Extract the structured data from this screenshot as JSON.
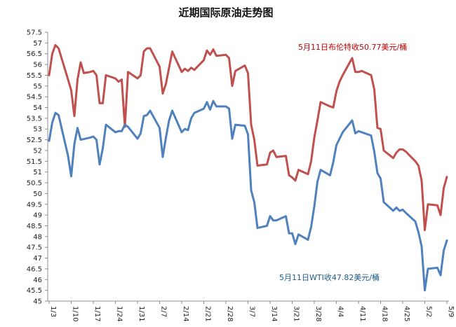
{
  "chart_data": {
    "type": "line",
    "title": "近期国际原油走势图",
    "xlabel": "",
    "ylabel": "",
    "ylim": [
      45,
      57.5
    ],
    "ystep": 0.5,
    "x_ticks": [
      "1/3",
      "1/10",
      "1/17",
      "1/24",
      "1/31",
      "2/7",
      "2/14",
      "2/21",
      "2/28",
      "3/7",
      "3/14",
      "3/21",
      "3/28",
      "4/4",
      "4/11",
      "4/18",
      "4/25",
      "5/2",
      "5/9"
    ],
    "grid": false,
    "legend": "none",
    "series": [
      {
        "color": "#c0504d",
        "values": [
          [
            0,
            55.5
          ],
          [
            1,
            56.5
          ],
          [
            2,
            56.9
          ],
          [
            3,
            56.75
          ],
          [
            6,
            55.3
          ],
          [
            7,
            54.8
          ],
          [
            8,
            53.6
          ],
          [
            9,
            55.3
          ],
          [
            10,
            56.1
          ],
          [
            11,
            55.6
          ],
          [
            13,
            55.65
          ],
          [
            14,
            55.7
          ],
          [
            15,
            55.5
          ],
          [
            16,
            54.2
          ],
          [
            17,
            54.2
          ],
          [
            18,
            55.5
          ],
          [
            21,
            55.35
          ],
          [
            22,
            55.2
          ],
          [
            23,
            55.3
          ],
          [
            24,
            53.1
          ],
          [
            25,
            55.65
          ],
          [
            28,
            55.35
          ],
          [
            29,
            55.5
          ],
          [
            30,
            56.6
          ],
          [
            31,
            56.75
          ],
          [
            32,
            56.75
          ],
          [
            35,
            55.9
          ],
          [
            36,
            54.65
          ],
          [
            37,
            55.1
          ],
          [
            39,
            56.6
          ],
          [
            42,
            55.65
          ],
          [
            43,
            55.8
          ],
          [
            44,
            55.7
          ],
          [
            45,
            55.85
          ],
          [
            46,
            55.75
          ],
          [
            49,
            56.2
          ],
          [
            50,
            56.65
          ],
          [
            51,
            56.45
          ],
          [
            52,
            56.7
          ],
          [
            53,
            56.4
          ],
          [
            56,
            56.45
          ],
          [
            57,
            56.3
          ],
          [
            58,
            55.0
          ],
          [
            59,
            55.7
          ],
          [
            62,
            55.95
          ],
          [
            63,
            55.6
          ],
          [
            64,
            53.2
          ],
          [
            65,
            52.5
          ],
          [
            66,
            51.3
          ],
          [
            69,
            51.35
          ],
          [
            70,
            51.9
          ],
          [
            71,
            52.0
          ],
          [
            72,
            51.7
          ],
          [
            75,
            51.75
          ],
          [
            76,
            50.85
          ],
          [
            77,
            50.75
          ],
          [
            78,
            50.6
          ],
          [
            79,
            51.1
          ],
          [
            82,
            50.9
          ],
          [
            83,
            51.5
          ],
          [
            84,
            52.6
          ],
          [
            85,
            53.4
          ],
          [
            86,
            54.25
          ],
          [
            89,
            54.05
          ],
          [
            90,
            54.0
          ],
          [
            91,
            54.75
          ],
          [
            92,
            55.2
          ],
          [
            93,
            55.5
          ],
          [
            96,
            56.3
          ],
          [
            97,
            55.65
          ],
          [
            98,
            55.65
          ],
          [
            99,
            55.7
          ],
          [
            102,
            55.5
          ],
          [
            103,
            54.85
          ],
          [
            104,
            53.05
          ],
          [
            105,
            53.0
          ],
          [
            106,
            52.0
          ],
          [
            109,
            51.65
          ],
          [
            110,
            51.9
          ],
          [
            111,
            52.05
          ],
          [
            112,
            52.05
          ],
          [
            113,
            51.95
          ],
          [
            116,
            51.5
          ],
          [
            117,
            51.3
          ],
          [
            118,
            50.6
          ],
          [
            119,
            48.3
          ],
          [
            120,
            49.5
          ],
          [
            123,
            49.45
          ],
          [
            124,
            49.0
          ],
          [
            125,
            50.25
          ],
          [
            126,
            50.77
          ]
        ]
      },
      {
        "color": "#4f81bd",
        "values": [
          [
            0,
            52.45
          ],
          [
            1,
            53.3
          ],
          [
            2,
            53.75
          ],
          [
            3,
            53.65
          ],
          [
            6,
            51.75
          ],
          [
            7,
            50.8
          ],
          [
            8,
            52.3
          ],
          [
            9,
            53.05
          ],
          [
            10,
            52.5
          ],
          [
            13,
            52.6
          ],
          [
            14,
            52.65
          ],
          [
            15,
            52.5
          ],
          [
            16,
            51.35
          ],
          [
            17,
            52.1
          ],
          [
            18,
            53.2
          ],
          [
            21,
            52.85
          ],
          [
            22,
            52.9
          ],
          [
            23,
            52.9
          ],
          [
            24,
            53.2
          ],
          [
            25,
            53.1
          ],
          [
            28,
            52.55
          ],
          [
            29,
            52.8
          ],
          [
            30,
            53.6
          ],
          [
            31,
            53.65
          ],
          [
            32,
            53.85
          ],
          [
            35,
            53.05
          ],
          [
            36,
            51.7
          ],
          [
            37,
            52.6
          ],
          [
            38,
            53.4
          ],
          [
            39,
            53.85
          ],
          [
            42,
            52.85
          ],
          [
            43,
            53.0
          ],
          [
            44,
            52.95
          ],
          [
            45,
            53.5
          ],
          [
            46,
            53.75
          ],
          [
            49,
            53.95
          ],
          [
            50,
            54.25
          ],
          [
            51,
            53.9
          ],
          [
            52,
            54.3
          ],
          [
            53,
            54.05
          ],
          [
            56,
            54.05
          ],
          [
            57,
            53.95
          ],
          [
            58,
            52.55
          ],
          [
            59,
            53.2
          ],
          [
            62,
            53.15
          ],
          [
            63,
            52.75
          ],
          [
            64,
            50.15
          ],
          [
            65,
            49.6
          ],
          [
            66,
            48.4
          ],
          [
            69,
            48.5
          ],
          [
            70,
            48.95
          ],
          [
            71,
            48.75
          ],
          [
            72,
            48.75
          ],
          [
            75,
            48.95
          ],
          [
            76,
            48.15
          ],
          [
            77,
            48.15
          ],
          [
            78,
            47.65
          ],
          [
            79,
            48.1
          ],
          [
            82,
            47.85
          ],
          [
            83,
            48.45
          ],
          [
            84,
            49.4
          ],
          [
            85,
            50.55
          ],
          [
            86,
            51.1
          ],
          [
            89,
            50.85
          ],
          [
            90,
            51.45
          ],
          [
            91,
            52.25
          ],
          [
            92,
            52.55
          ],
          [
            93,
            52.85
          ],
          [
            96,
            53.4
          ],
          [
            97,
            52.8
          ],
          [
            98,
            52.9
          ],
          [
            99,
            52.85
          ],
          [
            102,
            52.7
          ],
          [
            103,
            51.95
          ],
          [
            104,
            50.95
          ],
          [
            105,
            50.7
          ],
          [
            106,
            49.6
          ],
          [
            109,
            49.2
          ],
          [
            110,
            49.35
          ],
          [
            111,
            49.2
          ],
          [
            112,
            49.25
          ],
          [
            113,
            49.1
          ],
          [
            116,
            48.7
          ],
          [
            117,
            48.2
          ],
          [
            118,
            47.55
          ],
          [
            119,
            45.5
          ],
          [
            120,
            46.5
          ],
          [
            123,
            46.55
          ],
          [
            124,
            46.2
          ],
          [
            125,
            47.35
          ],
          [
            126,
            47.82
          ]
        ]
      }
    ],
    "annotations": [
      {
        "text": "5月11日布伦特收50.77美元/桶",
        "color": "#c00000"
      },
      {
        "text": "5月11日WTI收47.82美元/桶",
        "color": "#1f5c8b"
      }
    ]
  }
}
